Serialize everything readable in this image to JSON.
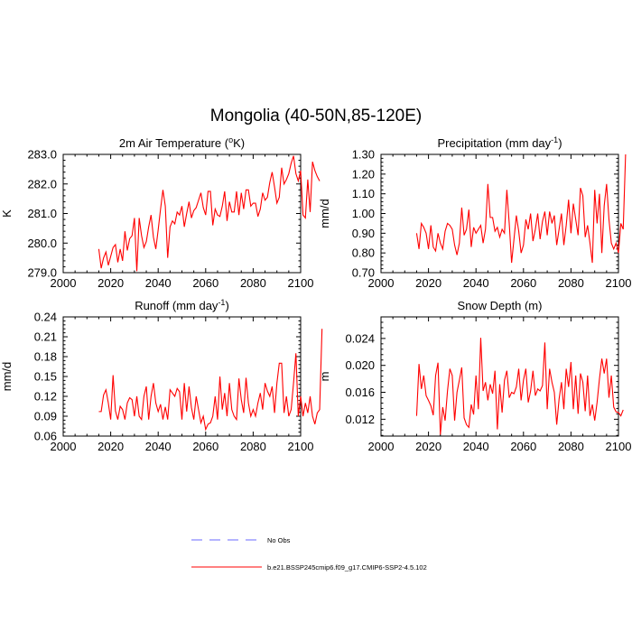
{
  "main_title": "Mongolia (40-50N,85-120E)",
  "chart_data": [
    {
      "type": "line",
      "title": "2m Air Temperature (°K)",
      "title_parts": {
        "before": "2m Air Temperature (",
        "sup": "o",
        "after": "K)"
      },
      "ylabel": "K",
      "xlim": [
        2000,
        2100
      ],
      "ylim": [
        279.0,
        283.0
      ],
      "xticks": [
        2000,
        2020,
        2040,
        2060,
        2080,
        2100
      ],
      "yticks": [
        279.0,
        280.0,
        281.0,
        282.0,
        283.0
      ],
      "ytick_labels": [
        "279.0",
        "280.0",
        "281.0",
        "282.0",
        "283.0"
      ],
      "series": [
        {
          "color": "#ff0000",
          "x_start": 2015,
          "values": [
            279.8,
            279.15,
            279.5,
            279.7,
            279.25,
            279.55,
            279.85,
            279.95,
            279.35,
            279.8,
            279.4,
            280.4,
            279.75,
            280.15,
            280.25,
            280.85,
            279.05,
            280.85,
            280.25,
            279.85,
            280.05,
            280.55,
            280.95,
            280.2,
            279.8,
            280.45,
            281.15,
            281.8,
            281.25,
            279.5,
            280.55,
            280.75,
            280.65,
            281.05,
            280.95,
            281.25,
            280.55,
            281.0,
            281.4,
            280.85,
            281.1,
            281.2,
            281.45,
            281.7,
            281.2,
            280.95,
            281.75,
            281.75,
            280.6,
            281.15,
            280.95,
            280.9,
            281.25,
            281.75,
            280.75,
            281.4,
            281.05,
            281.05,
            281.75,
            280.95,
            281.7,
            281.15,
            281.8,
            281.8,
            281.25,
            281.35,
            281.35,
            280.9,
            281.15,
            281.7,
            281.45,
            281.55,
            282.05,
            282.4,
            281.9,
            281.35,
            281.55,
            282.55,
            282.0,
            282.15,
            282.35,
            282.7,
            282.95,
            282.35,
            282.1,
            282.45,
            280.95,
            280.85,
            282.15,
            281.05,
            282.75,
            282.45,
            282.25,
            282.1
          ]
        }
      ]
    },
    {
      "type": "line",
      "title": "Precipitation (mm day⁻¹)",
      "title_parts": {
        "before": "Precipitation (mm day",
        "sup": "-1",
        "after": ")"
      },
      "ylabel": "mm/d",
      "xlim": [
        2000,
        2100
      ],
      "ylim": [
        0.7,
        1.3
      ],
      "xticks": [
        2000,
        2020,
        2040,
        2060,
        2080,
        2100
      ],
      "yticks": [
        0.7,
        0.8,
        0.9,
        1.0,
        1.1,
        1.2,
        1.3
      ],
      "ytick_labels": [
        "0.70",
        "0.80",
        "0.90",
        "1.00",
        "1.10",
        "1.20",
        "1.30"
      ],
      "series": [
        {
          "color": "#ff0000",
          "x_start": 2015,
          "values": [
            0.9,
            0.82,
            0.95,
            0.93,
            0.9,
            0.82,
            0.94,
            0.83,
            0.81,
            0.9,
            0.85,
            0.82,
            0.91,
            0.95,
            0.94,
            0.92,
            0.84,
            0.79,
            0.85,
            1.03,
            0.89,
            0.92,
            1.02,
            0.83,
            0.93,
            0.9,
            0.92,
            0.94,
            0.85,
            0.92,
            1.15,
            0.98,
            0.98,
            0.91,
            0.93,
            0.88,
            0.92,
            0.9,
            1.12,
            0.95,
            0.75,
            0.87,
            0.99,
            0.91,
            0.8,
            0.84,
            0.97,
            0.92,
            1.0,
            0.86,
            0.92,
            1.0,
            0.87,
            0.96,
            1.01,
            0.89,
            1.01,
            0.95,
            0.99,
            0.84,
            0.92,
            1.0,
            0.84,
            0.94,
            1.07,
            0.9,
            1.05,
            0.97,
            0.89,
            1.13,
            1.09,
            0.88,
            0.94,
            0.85,
            0.75,
            1.12,
            0.95,
            1.1,
            0.8,
            1.04,
            1.15,
            0.97,
            0.85,
            0.82,
            0.85,
            0.8,
            0.95,
            0.92,
            1.3
          ]
        }
      ]
    },
    {
      "type": "line",
      "title": "Runoff (mm day⁻¹)",
      "title_parts": {
        "before": "Runoff (mm day",
        "sup": "-1",
        "after": ")"
      },
      "ylabel": "mm/d",
      "xlim": [
        2000,
        2100
      ],
      "ylim": [
        0.06,
        0.24
      ],
      "xticks": [
        2000,
        2020,
        2040,
        2060,
        2080,
        2100
      ],
      "yticks": [
        0.06,
        0.09,
        0.12,
        0.15,
        0.18,
        0.21,
        0.24
      ],
      "ytick_labels": [
        "0.06",
        "0.09",
        "0.12",
        "0.15",
        "0.18",
        "0.21",
        "0.24"
      ],
      "series": [
        {
          "color": "#ff0000",
          "x_start": 2015,
          "values": [
            0.097,
            0.097,
            0.122,
            0.13,
            0.11,
            0.085,
            0.152,
            0.098,
            0.085,
            0.105,
            0.1,
            0.085,
            0.11,
            0.118,
            0.115,
            0.09,
            0.12,
            0.09,
            0.085,
            0.12,
            0.135,
            0.085,
            0.12,
            0.14,
            0.11,
            0.097,
            0.108,
            0.085,
            0.104,
            0.085,
            0.13,
            0.125,
            0.12,
            0.132,
            0.127,
            0.085,
            0.14,
            0.097,
            0.135,
            0.103,
            0.085,
            0.12,
            0.1,
            0.08,
            0.09,
            0.07,
            0.078,
            0.08,
            0.09,
            0.12,
            0.085,
            0.15,
            0.1,
            0.125,
            0.09,
            0.14,
            0.1,
            0.09,
            0.085,
            0.147,
            0.115,
            0.095,
            0.148,
            0.11,
            0.09,
            0.1,
            0.09,
            0.11,
            0.125,
            0.1,
            0.14,
            0.128,
            0.12,
            0.135,
            0.095,
            0.14,
            0.17,
            0.17,
            0.095,
            0.12,
            0.09,
            0.1,
            0.14,
            0.185,
            0.09,
            0.12,
            0.09,
            0.11,
            0.095,
            0.12,
            0.09,
            0.078,
            0.095,
            0.1,
            0.222
          ]
        }
      ]
    },
    {
      "type": "line",
      "title": "Snow Depth (m)",
      "ylabel": "m",
      "xlim": [
        2000,
        2100
      ],
      "ylim": [
        0.0095,
        0.0272
      ],
      "xticks": [
        2000,
        2020,
        2040,
        2060,
        2080,
        2100
      ],
      "yticks": [
        0.012,
        0.016,
        0.02,
        0.024
      ],
      "ytick_labels": [
        "0.012",
        "0.016",
        "0.020",
        "0.024"
      ],
      "series": [
        {
          "color": "#ff0000",
          "x_start": 2015,
          "values": [
            0.0125,
            0.0202,
            0.0165,
            0.0185,
            0.0155,
            0.0148,
            0.014,
            0.0126,
            0.0185,
            0.0204,
            0.0097,
            0.0138,
            0.0118,
            0.0162,
            0.0195,
            0.0185,
            0.0118,
            0.016,
            0.0178,
            0.0197,
            0.0122,
            0.0112,
            0.0108,
            0.0142,
            0.0127,
            0.0185,
            0.0135,
            0.0241,
            0.0162,
            0.0175,
            0.0148,
            0.0172,
            0.0158,
            0.0192,
            0.0105,
            0.0172,
            0.013,
            0.0178,
            0.0192,
            0.0152,
            0.016,
            0.0158,
            0.0168,
            0.0195,
            0.0148,
            0.0178,
            0.0195,
            0.0145,
            0.0162,
            0.0192,
            0.0155,
            0.0165,
            0.0162,
            0.017,
            0.0234,
            0.0135,
            0.0195,
            0.0175,
            0.016,
            0.0112,
            0.015,
            0.0175,
            0.0135,
            0.0195,
            0.0168,
            0.0205,
            0.0135,
            0.0185,
            0.0128,
            0.0188,
            0.0175,
            0.0132,
            0.0185,
            0.0125,
            0.0142,
            0.0118,
            0.0145,
            0.018,
            0.021,
            0.0188,
            0.021,
            0.0152,
            0.0185,
            0.0138,
            0.0131,
            0.013,
            0.0125,
            0.0134
          ]
        }
      ]
    }
  ],
  "legend": {
    "items": [
      {
        "label": "No Obs",
        "color": "#6a6aff",
        "style": "dashed"
      },
      {
        "label": "b.e21.BSSP245cmip6.f09_g17.CMIP6-SSP2-4.5.102",
        "color": "#ff0000",
        "style": "solid"
      }
    ]
  }
}
